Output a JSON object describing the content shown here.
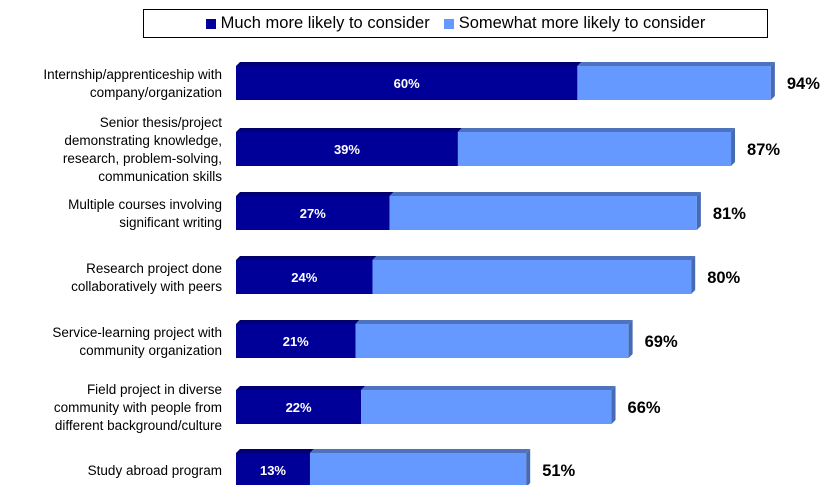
{
  "chart_data": {
    "type": "bar",
    "orientation": "horizontal",
    "stacked": true,
    "title": "",
    "xlabel": "",
    "ylabel": "",
    "xlim": [
      0,
      100
    ],
    "grid": false,
    "legend_position": "top",
    "categories": [
      [
        "Internship/apprenticeship with",
        "company/organization"
      ],
      [
        "Senior thesis/project",
        "demonstrating knowledge,",
        "research, problem-solving,",
        "communication skills"
      ],
      [
        "Multiple courses involving",
        "significant writing"
      ],
      [
        "Research project done",
        "collaboratively with peers"
      ],
      [
        "Service-learning project with",
        "community organization"
      ],
      [
        "Field project in diverse",
        "community with people from",
        "different background/culture"
      ],
      [
        "Study abroad program"
      ]
    ],
    "series": [
      {
        "name": "Much more likely to consider",
        "color": "#000099",
        "values": [
          60,
          39,
          27,
          24,
          21,
          22,
          13
        ],
        "labels": [
          "60%",
          "39%",
          "27%",
          "24%",
          "21%",
          "22%",
          "13%"
        ]
      },
      {
        "name": "Somewhat more likely to consider",
        "color": "#6699FF",
        "values": [
          34,
          48,
          54,
          56,
          48,
          44,
          38
        ]
      }
    ],
    "totals": [
      94,
      87,
      81,
      80,
      69,
      66,
      51
    ],
    "total_labels": [
      "94%",
      "87%",
      "81%",
      "80%",
      "69%",
      "66%",
      "51%"
    ]
  }
}
